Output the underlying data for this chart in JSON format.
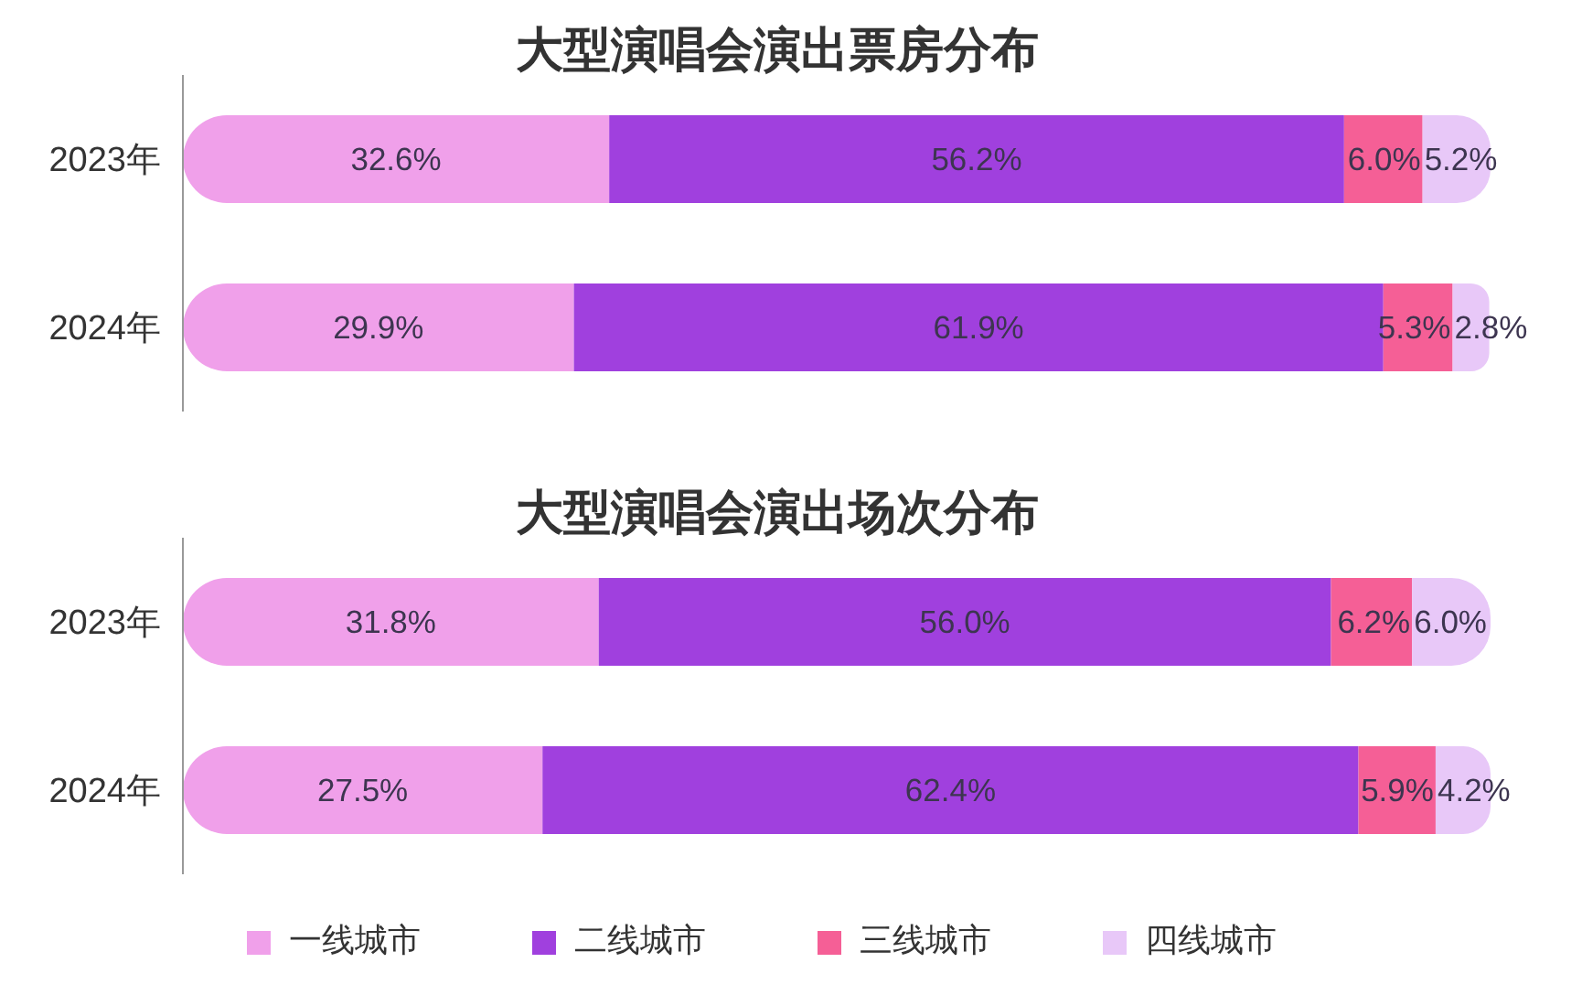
{
  "chart_data": [
    {
      "type": "bar",
      "title": "大型演唱会演出票房分布",
      "orientation": "horizontal",
      "stacked": true,
      "tick_labels": "y",
      "categories": [
        "2023年",
        "2024年"
      ],
      "series": [
        {
          "color": "#f0a0ea",
          "values": [
            32.6,
            29.9
          ],
          "value_labels": [
            "32.6%",
            "29.9%"
          ]
        },
        {
          "color": "#a040de",
          "values": [
            56.2,
            61.9
          ],
          "value_labels": [
            "56.2%",
            "61.9%"
          ]
        },
        {
          "color": "#f55f96",
          "values": [
            6.0,
            5.3
          ],
          "value_labels": [
            "6.0%",
            "5.3%"
          ]
        },
        {
          "color": "#e8c8f8",
          "values": [
            5.2,
            2.8
          ],
          "value_labels": [
            "5.2%",
            "2.8%"
          ]
        }
      ]
    },
    {
      "type": "bar",
      "title": "大型演唱会演出场次分布",
      "orientation": "horizontal",
      "stacked": true,
      "tick_labels": "y",
      "legend": "bottom",
      "categories": [
        "2023年",
        "2024年"
      ],
      "series": [
        {
          "name": "一线城市",
          "color": "#f0a0ea",
          "values": [
            31.8,
            27.5
          ],
          "value_labels": [
            "31.8%",
            "27.5%"
          ]
        },
        {
          "name": "二线城市",
          "color": "#a040de",
          "values": [
            56.0,
            62.4
          ],
          "value_labels": [
            "56.0%",
            "62.4%"
          ]
        },
        {
          "name": "三线城市",
          "color": "#f55f96",
          "values": [
            6.2,
            5.9
          ],
          "value_labels": [
            "6.2%",
            "5.9%"
          ]
        },
        {
          "name": "四线城市",
          "color": "#e8c8f8",
          "values": [
            6.0,
            4.2
          ],
          "value_labels": [
            "6.0%",
            "4.2%"
          ]
        }
      ]
    }
  ]
}
